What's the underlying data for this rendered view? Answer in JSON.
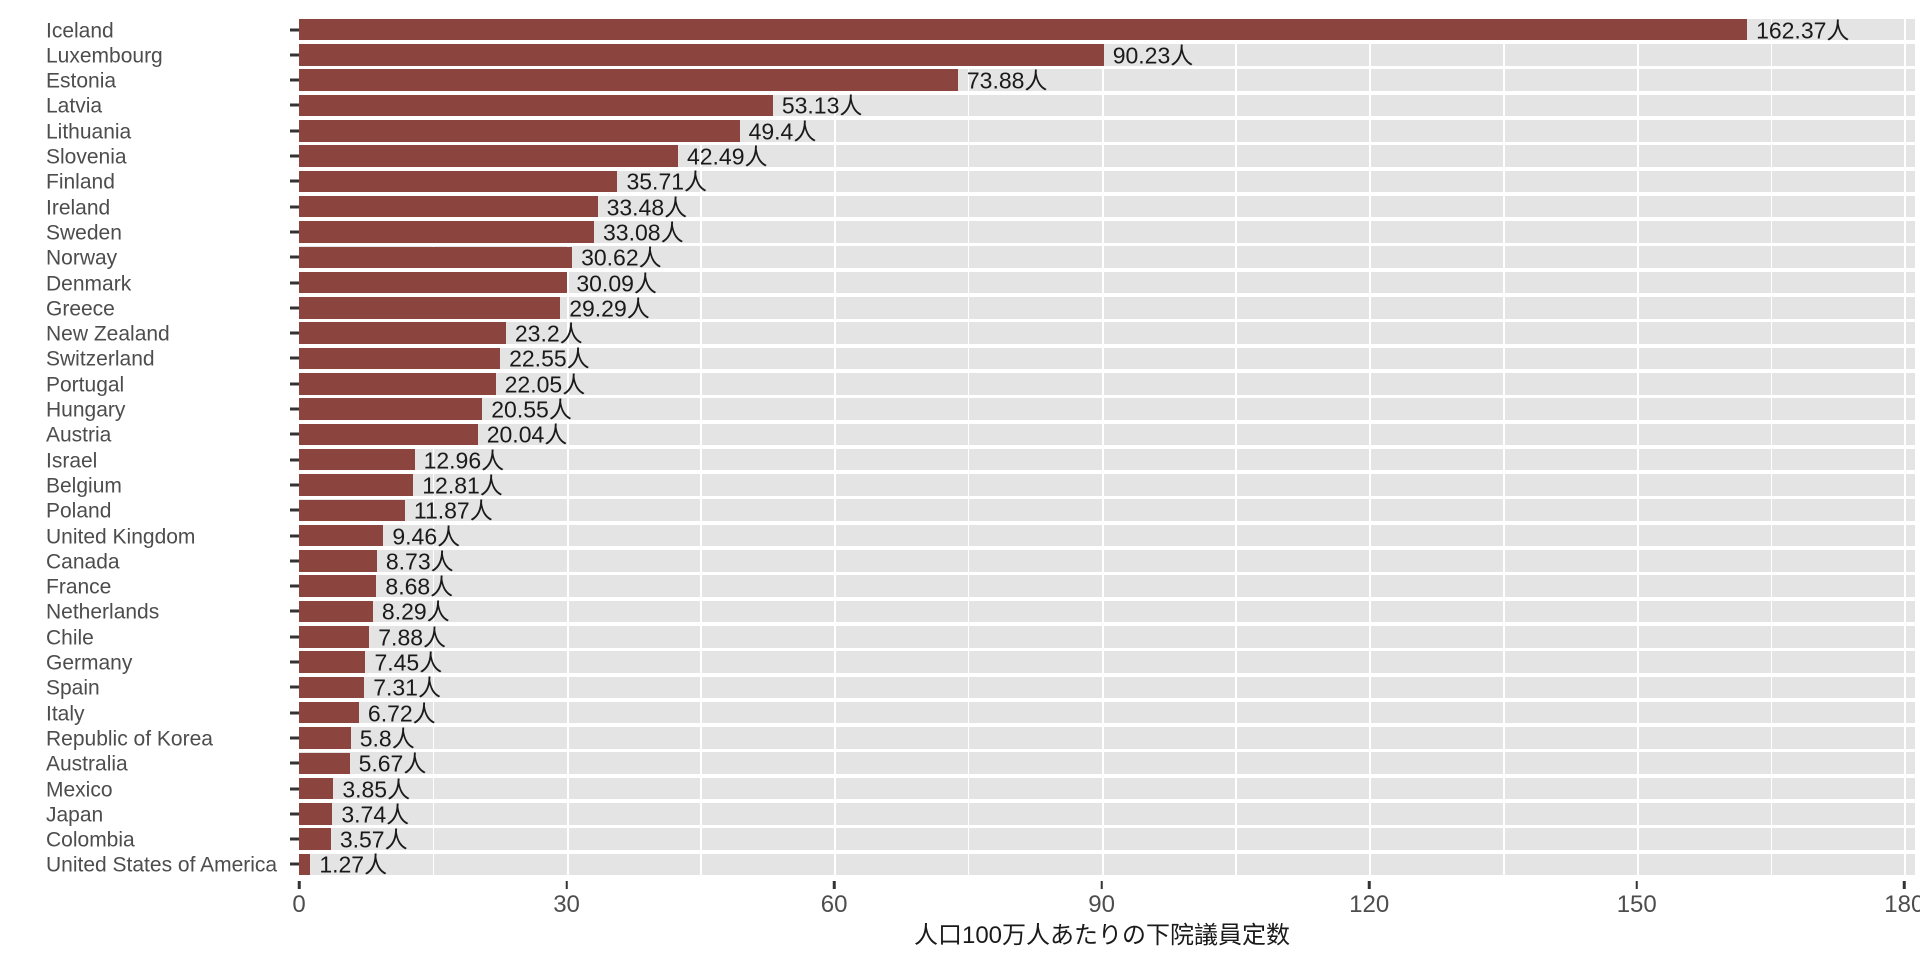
{
  "chart_data": {
    "type": "bar",
    "orientation": "horizontal",
    "title": "",
    "xlabel": "人口100万人あたりの下院議員定数",
    "ylabel": "",
    "value_unit": "人",
    "x_ticks": [
      0,
      30,
      60,
      90,
      120,
      150,
      180
    ],
    "x_axis_max_units": 181.2,
    "minor_grid_step": 15,
    "grid": true,
    "legend": "none",
    "categories": [
      "Iceland",
      "Luxembourg",
      "Estonia",
      "Latvia",
      "Lithuania",
      "Slovenia",
      "Finland",
      "Ireland",
      "Sweden",
      "Norway",
      "Denmark",
      "Greece",
      "New Zealand",
      "Switzerland",
      "Portugal",
      "Hungary",
      "Austria",
      "Israel",
      "Belgium",
      "Poland",
      "United Kingdom",
      "Canada",
      "France",
      "Netherlands",
      "Chile",
      "Germany",
      "Spain",
      "Italy",
      "Republic of Korea",
      "Australia",
      "Mexico",
      "Japan",
      "Colombia",
      "United States of America"
    ],
    "values": [
      162.37,
      90.23,
      73.88,
      53.13,
      49.4,
      42.49,
      35.71,
      33.48,
      33.08,
      30.62,
      30.09,
      29.29,
      23.2,
      22.55,
      22.05,
      20.55,
      20.04,
      12.96,
      12.81,
      11.87,
      9.46,
      8.73,
      8.68,
      8.29,
      7.88,
      7.45,
      7.31,
      6.72,
      5.8,
      5.67,
      3.85,
      3.74,
      3.57,
      1.27
    ],
    "colors": {
      "bar": "#8C443E",
      "panel_background": "#E4E4E4",
      "gridline": "#FFFFFF",
      "axis_text": "#4D4D4D",
      "value_text": "#1A1A1A",
      "tick_mark": "#333333",
      "page_background": "#FFFFFF"
    }
  }
}
